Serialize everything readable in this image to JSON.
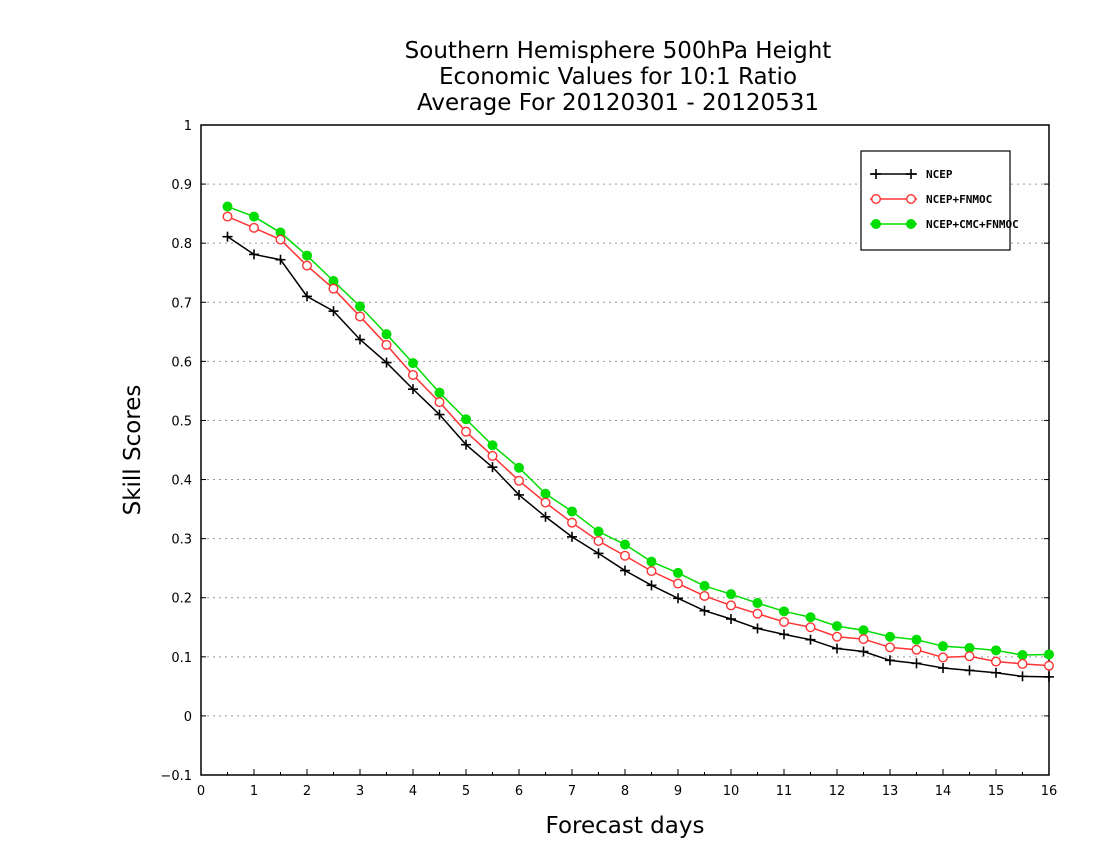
{
  "chart_data": {
    "type": "line",
    "title": [
      "Southern Hemisphere 500hPa Height",
      "Economic Values for 10:1 Ratio",
      "Average For 20120301 - 20120531"
    ],
    "xlabel": "Forecast days",
    "ylabel": "Skill Scores",
    "xlim": [
      0,
      16
    ],
    "ylim": [
      -0.1,
      1
    ],
    "xticks": [
      "0",
      "1",
      "2",
      "3",
      "4",
      "5",
      "6",
      "7",
      "8",
      "9",
      "10",
      "11",
      "12",
      "13",
      "14",
      "15",
      "16"
    ],
    "yticks": [
      "−0.1",
      "0",
      "0.1",
      "0.2",
      "0.3",
      "0.4",
      "0.5",
      "0.6",
      "0.7",
      "0.8",
      "0.9",
      "1"
    ],
    "grid": true,
    "legend_position": "top-right",
    "x": [
      0.5,
      1,
      1.5,
      2,
      2.5,
      3,
      3.5,
      4,
      4.5,
      5,
      5.5,
      6,
      6.5,
      7,
      7.5,
      8,
      8.5,
      9,
      9.5,
      10,
      10.5,
      11,
      11.5,
      12,
      12.5,
      13,
      13.5,
      14,
      14.5,
      15,
      15.5,
      16
    ],
    "series": [
      {
        "name": "NCEP",
        "color": "#000000",
        "marker": "plus",
        "values": [
          0.811,
          0.781,
          0.772,
          0.71,
          0.685,
          0.637,
          0.598,
          0.553,
          0.51,
          0.459,
          0.421,
          0.374,
          0.337,
          0.303,
          0.275,
          0.246,
          0.221,
          0.199,
          0.178,
          0.164,
          0.148,
          0.138,
          0.129,
          0.114,
          0.109,
          0.094,
          0.089,
          0.081,
          0.077,
          0.073,
          0.067,
          0.066
        ]
      },
      {
        "name": "NCEP+FNMOC",
        "color": "#ff3333",
        "marker": "open-circle",
        "values": [
          0.845,
          0.826,
          0.806,
          0.762,
          0.723,
          0.676,
          0.628,
          0.577,
          0.531,
          0.481,
          0.44,
          0.398,
          0.361,
          0.327,
          0.296,
          0.271,
          0.245,
          0.224,
          0.203,
          0.187,
          0.173,
          0.159,
          0.15,
          0.134,
          0.13,
          0.116,
          0.112,
          0.099,
          0.101,
          0.092,
          0.088,
          0.085
        ]
      },
      {
        "name": "NCEP+CMC+FNMOC",
        "color": "#00dd00",
        "marker": "filled-circle",
        "values": [
          0.862,
          0.845,
          0.818,
          0.779,
          0.736,
          0.693,
          0.646,
          0.597,
          0.547,
          0.502,
          0.458,
          0.42,
          0.376,
          0.346,
          0.312,
          0.29,
          0.261,
          0.242,
          0.22,
          0.206,
          0.191,
          0.177,
          0.167,
          0.152,
          0.145,
          0.134,
          0.129,
          0.118,
          0.115,
          0.111,
          0.103,
          0.104
        ]
      }
    ]
  }
}
